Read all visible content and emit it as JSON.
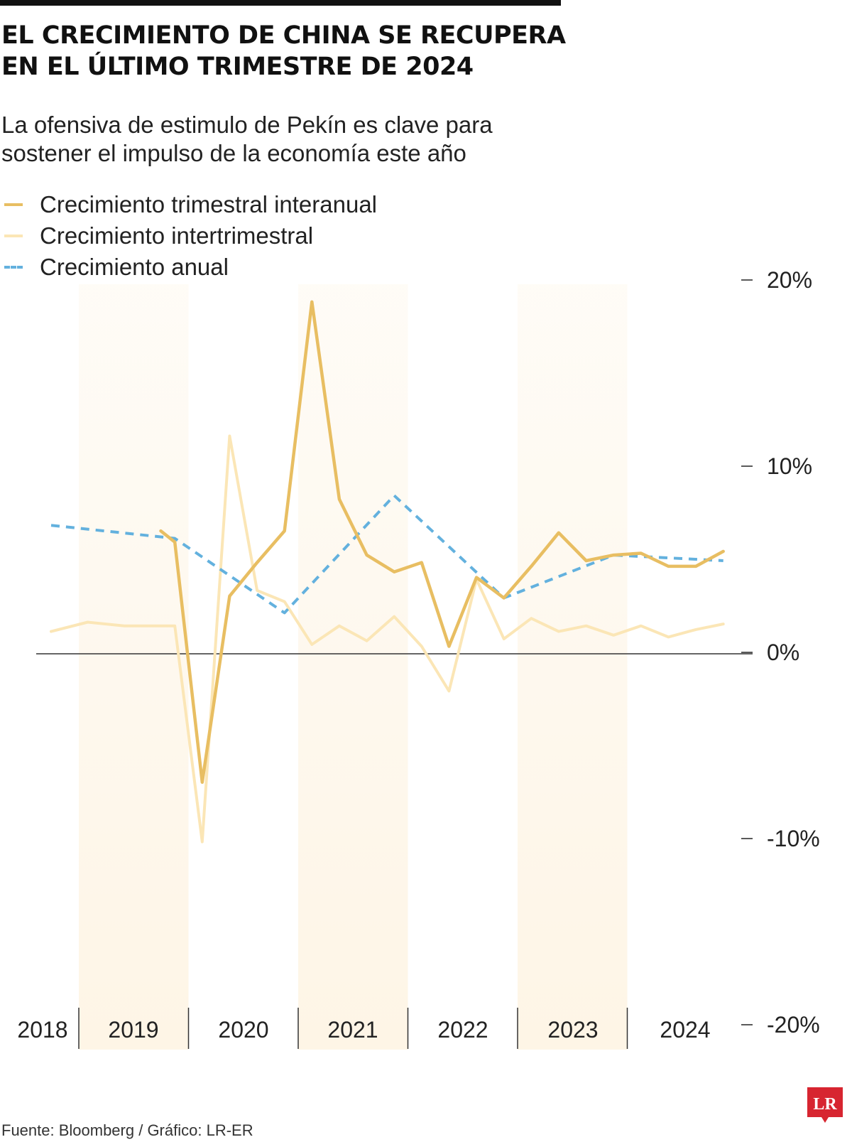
{
  "title_lines": [
    "EL CRECIMIENTO DE CHINA SE RECUPERA",
    "EN EL ÚLTIMO TRIMESTRE DE 2024"
  ],
  "subtitle_lines": [
    "La ofensiva de estimulo de Pekín es clave para",
    "sostener el impulso de la economía este año"
  ],
  "legend": [
    {
      "label": "Crecimiento trimestral interanual",
      "color": "#E8BE62",
      "style": "solid"
    },
    {
      "label": "Crecimiento intertrimestral",
      "color": "#FBE6B6",
      "style": "solid"
    },
    {
      "label": "Crecimiento anual",
      "color": "#63B1DE",
      "style": "dashed"
    }
  ],
  "footer": "Fuente: Bloomberg / Gráfico: LR-ER",
  "logo_text": "LR",
  "colors": {
    "logo_red": "#D72530",
    "band": "#FEF5E6",
    "axis": "#222222"
  },
  "chart_data": {
    "type": "line",
    "title": "EL CRECIMIENTO DE CHINA SE RECUPERA EN EL ÚLTIMO TRIMESTRE DE 2024",
    "subtitle": "La ofensiva de estimulo de Pekín es clave para sostener el impulso de la economía este año",
    "year_labels": [
      "2018",
      "2019",
      "2020",
      "2021",
      "2022",
      "2023",
      "2024"
    ],
    "y_ticks": [
      "20%",
      "10%",
      "0%",
      "-10%",
      "-20%"
    ],
    "y_tick_values": [
      20,
      10,
      0,
      -10,
      -20
    ],
    "ylim": [
      -20,
      20
    ],
    "y_axis_side": "right",
    "grid": false,
    "legend_position": "top-left",
    "series": [
      {
        "name": "Crecimiento trimestral interanual",
        "x": [
          "2018-Q4",
          "2019-Q4",
          "2020-Q1",
          "2020-Q2",
          "2020-Q3",
          "2020-Q4",
          "2021-Q1",
          "2021-Q2",
          "2021-Q3",
          "2021-Q4",
          "2022-Q1",
          "2022-Q2",
          "2022-Q3",
          "2022-Q4",
          "2023-Q1",
          "2023-Q2",
          "2023-Q3",
          "2023-Q4",
          "2024-Q1",
          "2024-Q2",
          "2024-Q3",
          "2024-Q4"
        ],
        "values": [
          6.6,
          6.0,
          -6.9,
          3.1,
          4.9,
          6.6,
          18.9,
          8.3,
          5.3,
          4.4,
          4.9,
          0.4,
          4.1,
          3.0,
          4.7,
          6.5,
          5.0,
          5.3,
          5.4,
          4.7,
          4.7,
          5.5
        ]
      },
      {
        "name": "Crecimiento intertrimestral",
        "x": [
          "2018-Q1",
          "2018-Q2",
          "2018-Q3",
          "2018-Q4",
          "2019-Q4",
          "2020-Q1",
          "2020-Q2",
          "2020-Q3",
          "2020-Q4",
          "2021-Q1",
          "2021-Q2",
          "2021-Q3",
          "2021-Q4",
          "2022-Q1",
          "2022-Q2",
          "2022-Q3",
          "2022-Q4",
          "2023-Q1",
          "2023-Q2",
          "2023-Q3",
          "2023-Q4",
          "2024-Q1",
          "2024-Q2",
          "2024-Q3",
          "2024-Q4"
        ],
        "values": [
          1.2,
          1.7,
          1.5,
          1.5,
          1.5,
          -10.1,
          11.7,
          3.4,
          2.8,
          0.5,
          1.5,
          0.7,
          2.0,
          0.4,
          -2.0,
          4.0,
          0.8,
          1.9,
          1.2,
          1.5,
          1.0,
          1.5,
          0.9,
          1.3,
          1.6
        ]
      },
      {
        "name": "Crecimiento anual",
        "x": [
          "2018",
          "2019",
          "2020",
          "2021",
          "2022",
          "2023",
          "2024"
        ],
        "values": [
          6.9,
          6.2,
          2.2,
          8.5,
          3.0,
          5.3,
          5.0
        ]
      }
    ]
  }
}
